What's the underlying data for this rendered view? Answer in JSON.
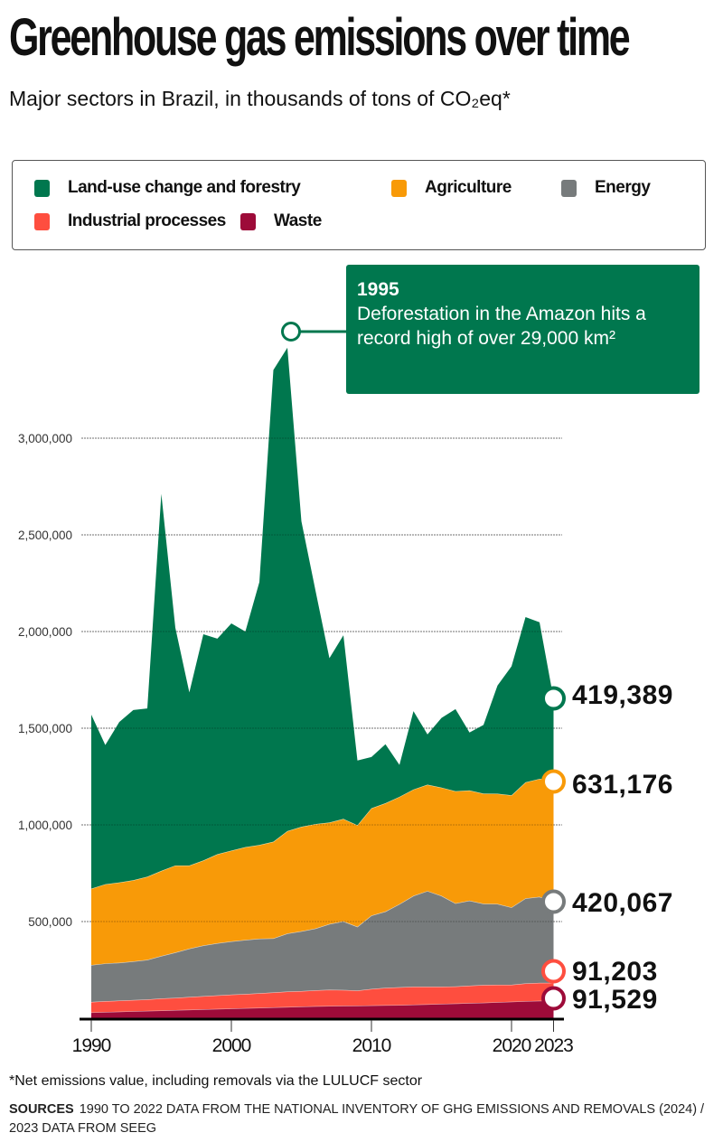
{
  "header": {
    "title": "Greenhouse gas emissions over time",
    "subtitle": "Major sectors in Brazil, in thousands of tons of CO₂eq*"
  },
  "legend": {
    "items": [
      {
        "label": "Land-use change and forestry",
        "color": "#00774e"
      },
      {
        "label": "Agriculture",
        "color": "#f89a08"
      },
      {
        "label": "Energy",
        "color": "#777b7c"
      },
      {
        "label": "Industrial processes",
        "color": "#fe4e3f"
      },
      {
        "label": "Waste",
        "color": "#9d0b39"
      }
    ]
  },
  "annotation": {
    "year": "1995",
    "text": "Deforestation in the Amazon hits a record high of over 29,000 km²",
    "color": "#00774e"
  },
  "end_labels": [
    {
      "series": "Land-use change and forestry",
      "value": "419,389"
    },
    {
      "series": "Agriculture",
      "value": "631,176"
    },
    {
      "series": "Energy",
      "value": "420,067"
    },
    {
      "series": "Industrial processes",
      "value": "91,203"
    },
    {
      "series": "Waste",
      "value": "91,529"
    }
  ],
  "footer": {
    "footnote": "*Net emissions value, including removals via the LULUCF sector",
    "sources_label": "SOURCES",
    "sources_text": "1990 TO 2022 DATA FROM THE NATIONAL INVENTORY OF GHG EMISSIONS AND REMOVALS (2024) / 2023 DATA FROM SEEG"
  },
  "chart_data": {
    "type": "area",
    "stacked": true,
    "title": "Greenhouse gas emissions over time",
    "subtitle": "Major sectors in Brazil, in thousands of tons of CO₂eq*",
    "xlabel": "",
    "ylabel": "",
    "x": [
      1990,
      1991,
      1992,
      1993,
      1994,
      1995,
      1996,
      1997,
      1998,
      1999,
      2000,
      2001,
      2002,
      2003,
      2004,
      2005,
      2006,
      2007,
      2008,
      2009,
      2010,
      2011,
      2012,
      2013,
      2014,
      2015,
      2016,
      2017,
      2018,
      2019,
      2020,
      2021,
      2022,
      2023
    ],
    "x_ticks": [
      "1990",
      "2000",
      "2010",
      "2020",
      "2023"
    ],
    "y_ticks": [
      "500,000",
      "1,000,000",
      "1,500,000",
      "2,000,000",
      "2,500,000",
      "3,000,000"
    ],
    "ylim": [
      0,
      3000000
    ],
    "grid": true,
    "legend_position": "top",
    "series": [
      {
        "name": "Waste",
        "color": "#9d0b39",
        "values": [
          30000,
          32000,
          34000,
          36000,
          38000,
          40000,
          42000,
          44000,
          46000,
          48000,
          50000,
          52000,
          54000,
          56000,
          58000,
          60000,
          62000,
          63000,
          64000,
          65000,
          66000,
          67000,
          68000,
          70000,
          72000,
          74000,
          76000,
          78000,
          80000,
          83000,
          85000,
          88000,
          90000,
          91529
        ]
      },
      {
        "name": "Industrial processes",
        "color": "#fe4e3f",
        "values": [
          54000,
          56000,
          57000,
          58000,
          59000,
          62000,
          63000,
          66000,
          68000,
          70000,
          72000,
          73000,
          75000,
          77000,
          80000,
          80000,
          82000,
          84000,
          82000,
          78000,
          85000,
          90000,
          92000,
          93000,
          91000,
          89000,
          88000,
          90000,
          92000,
          90000,
          88000,
          92000,
          93000,
          91203
        ]
      },
      {
        "name": "Energy",
        "color": "#777b7c",
        "values": [
          191000,
          195000,
          196000,
          200000,
          205000,
          220000,
          235000,
          250000,
          262000,
          270000,
          275000,
          280000,
          282000,
          280000,
          300000,
          310000,
          320000,
          340000,
          355000,
          330000,
          380000,
          395000,
          430000,
          470000,
          495000,
          470000,
          430000,
          440000,
          420000,
          418000,
          400000,
          440000,
          445000,
          420067
        ]
      },
      {
        "name": "Agriculture",
        "color": "#f89a08",
        "values": [
          395000,
          410000,
          415000,
          420000,
          430000,
          440000,
          450000,
          430000,
          440000,
          460000,
          470000,
          480000,
          485000,
          500000,
          530000,
          540000,
          540000,
          525000,
          530000,
          525000,
          555000,
          560000,
          555000,
          550000,
          550000,
          560000,
          580000,
          570000,
          570000,
          570000,
          580000,
          600000,
          610000,
          631176
        ]
      },
      {
        "name": "Land-use change and forestry",
        "color": "#00774e",
        "values": [
          900000,
          720000,
          830000,
          880000,
          870000,
          1950000,
          1230000,
          895000,
          1170000,
          1115000,
          1175000,
          1115000,
          1360000,
          2440000,
          2500000,
          1580000,
          1210000,
          850000,
          950000,
          335000,
          265000,
          305000,
          165000,
          405000,
          260000,
          360000,
          425000,
          300000,
          355000,
          560000,
          667000,
          855000,
          810000,
          419389
        ]
      }
    ],
    "end_values": {
      "Land-use change and forestry": 419389,
      "Agriculture": 631176,
      "Energy": 420067,
      "Industrial processes": 91203,
      "Waste": 91529
    },
    "annotations": [
      {
        "label": "1995",
        "text": "Deforestation in the Amazon hits a record high of over 29,000 km²"
      }
    ]
  }
}
